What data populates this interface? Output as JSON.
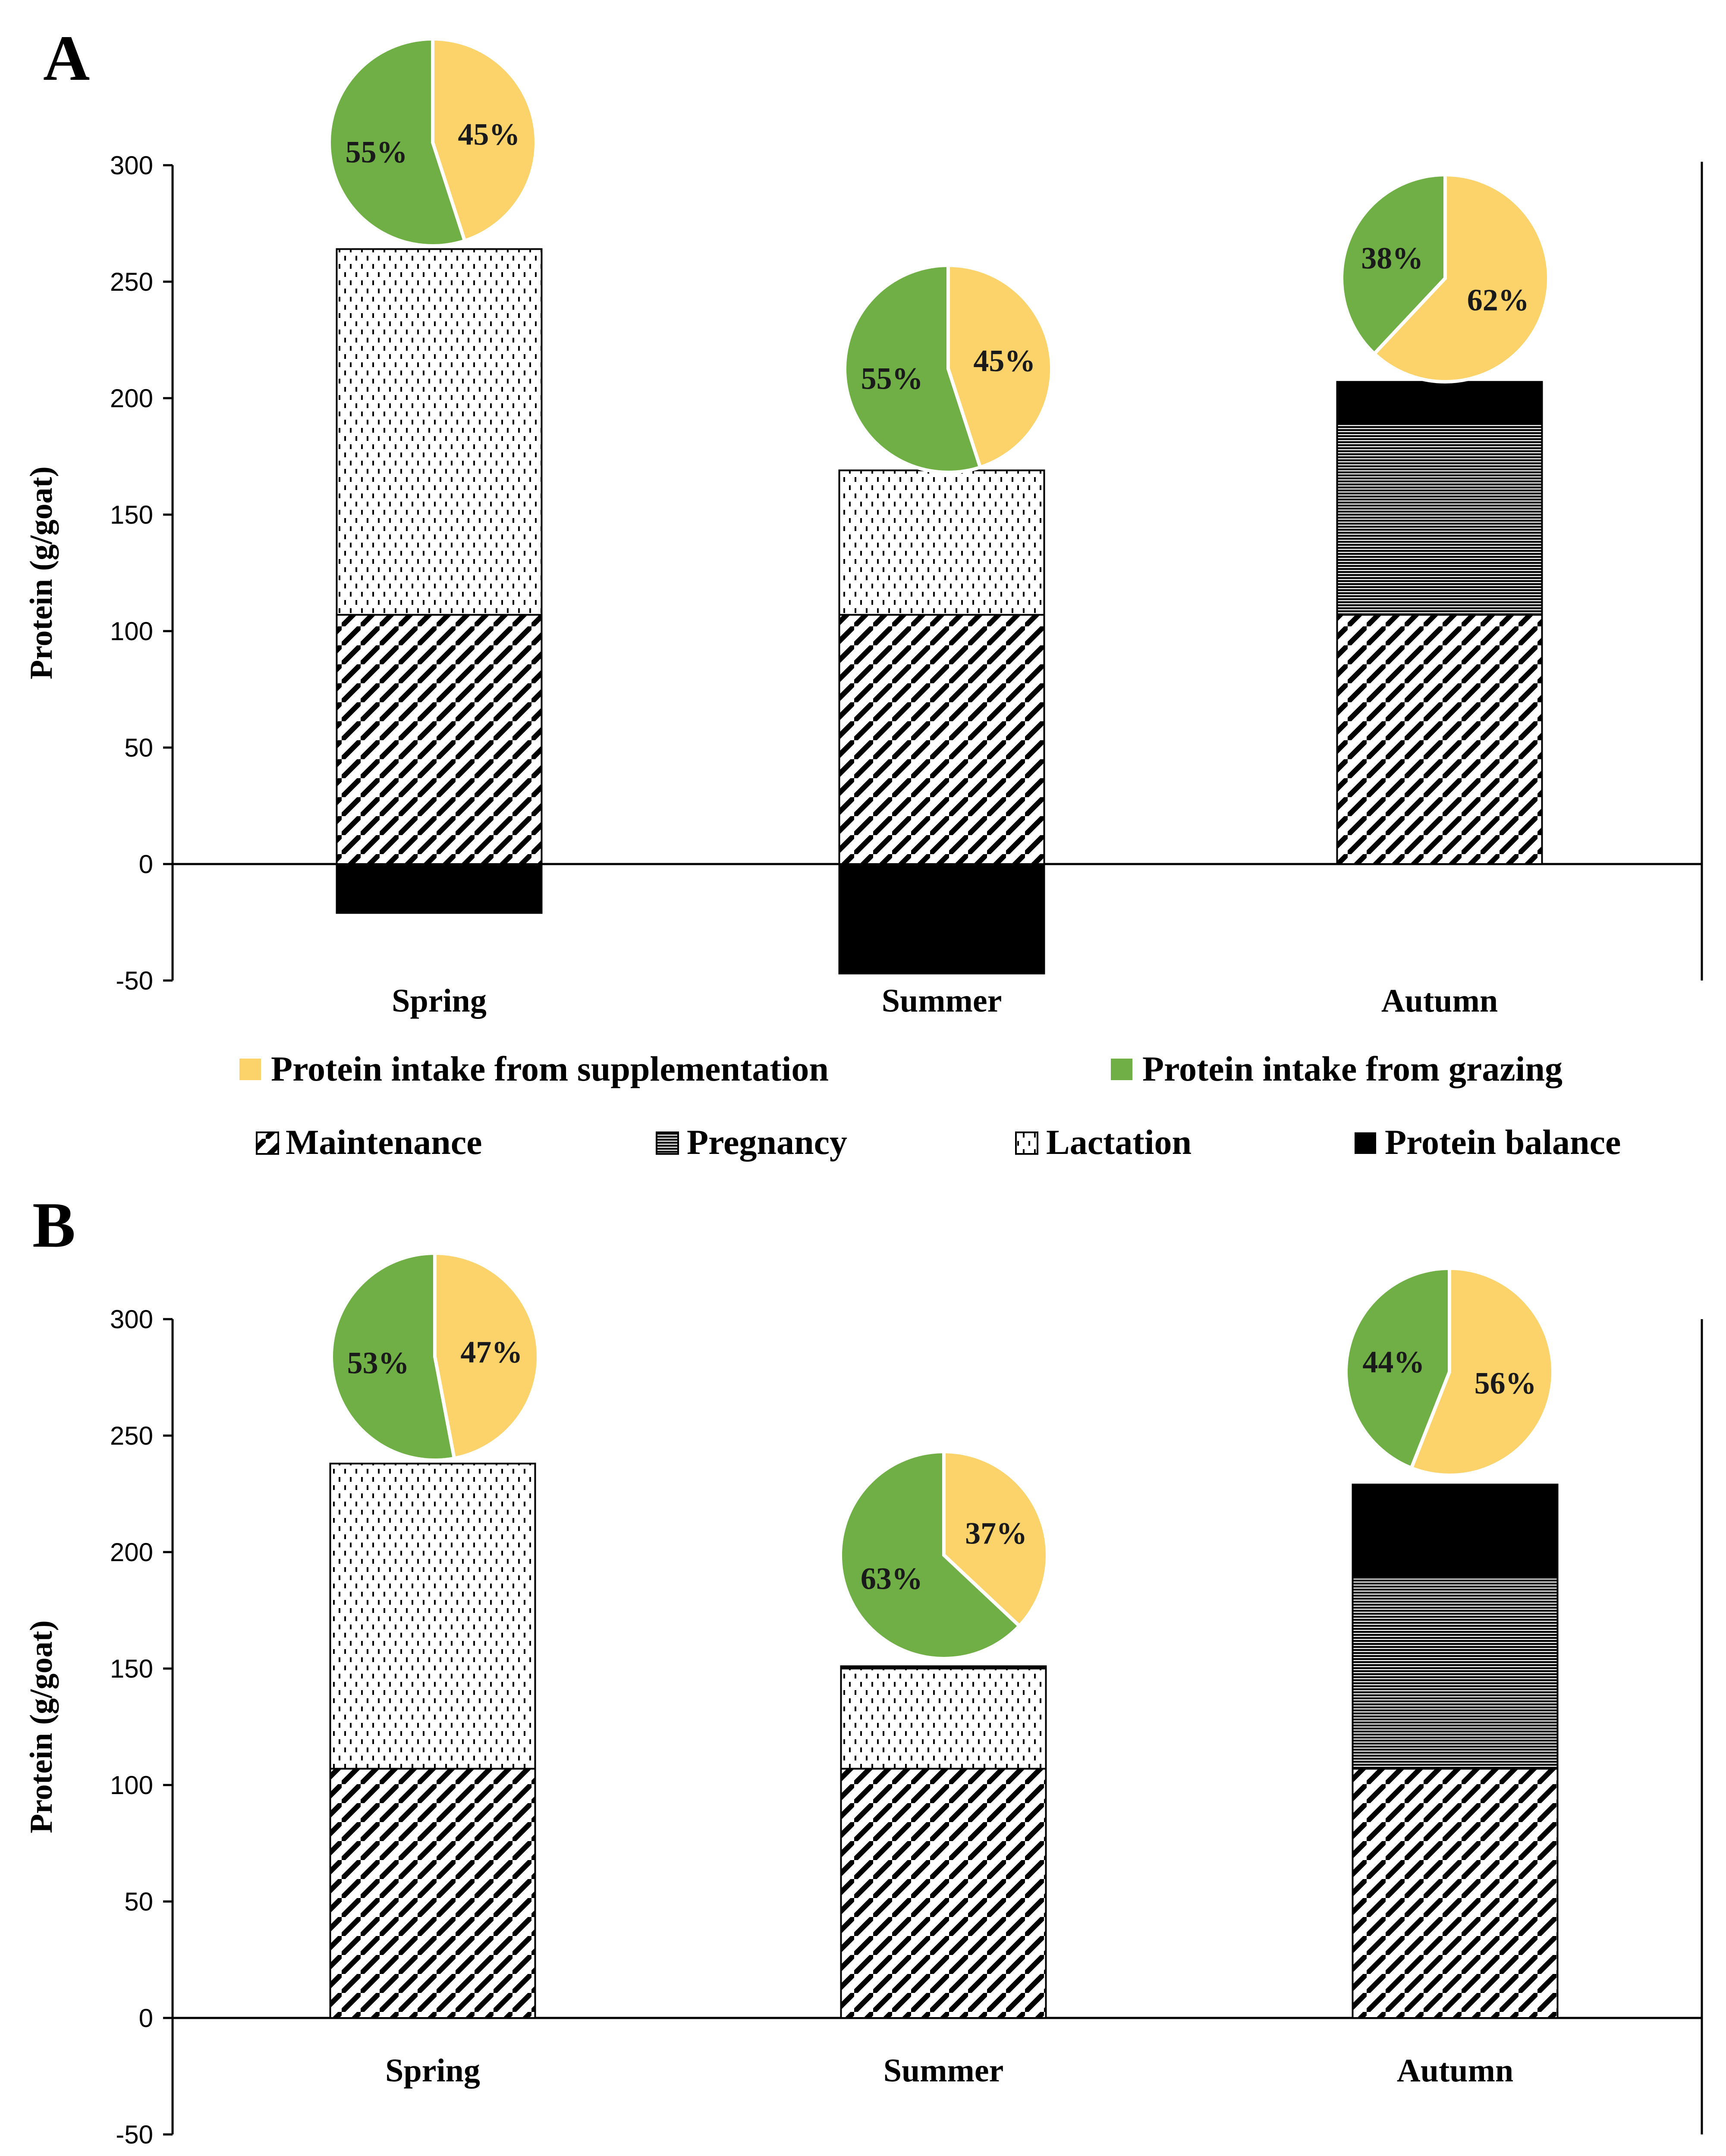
{
  "legend": {
    "pie_items": [
      {
        "label": "Protein intake from supplementation",
        "color": "#FBD36A"
      },
      {
        "label": "Protein intake from grazing",
        "color": "#6FAF45"
      }
    ],
    "bar_items": [
      {
        "label": "Maintenance",
        "pattern": "diag"
      },
      {
        "label": "Pregnancy",
        "pattern": "hlines"
      },
      {
        "label": "Lactation",
        "pattern": "dots"
      },
      {
        "label": "Protein balance",
        "pattern": "solid"
      }
    ]
  },
  "colors": {
    "supplementation": "#FBD36A",
    "grazing": "#6FAF45",
    "balance": "#000000"
  },
  "chart_data": [
    {
      "panel": "A",
      "type": "bar",
      "ylabel": "Protein (g/goat)",
      "ylim": [
        -50,
        300
      ],
      "yticks": [
        -50,
        0,
        50,
        100,
        150,
        200,
        250,
        300
      ],
      "categories": [
        "Spring",
        "Summer",
        "Autumn"
      ],
      "series": [
        {
          "name": "Maintenance",
          "values": [
            107,
            107,
            107
          ]
        },
        {
          "name": "Pregnancy",
          "values": [
            0,
            0,
            82
          ]
        },
        {
          "name": "Lactation",
          "values": [
            157,
            62,
            0
          ]
        },
        {
          "name": "Protein balance",
          "values": [
            -21,
            -47,
            18
          ]
        }
      ],
      "pies": [
        {
          "category": "Spring",
          "supplementation": 45,
          "grazing": 55,
          "labels": [
            "45%",
            "55%"
          ]
        },
        {
          "category": "Summer",
          "supplementation": 45,
          "grazing": 55,
          "labels": [
            "45%",
            "55%"
          ]
        },
        {
          "category": "Autumn",
          "supplementation": 62,
          "grazing": 38,
          "labels": [
            "62%",
            "38%"
          ]
        }
      ]
    },
    {
      "panel": "B",
      "type": "bar",
      "ylabel": "Protein (g/goat)",
      "ylim": [
        -50,
        300
      ],
      "yticks": [
        -50,
        0,
        50,
        100,
        150,
        200,
        250,
        300
      ],
      "categories": [
        "Spring",
        "Summer",
        "Autumn"
      ],
      "series": [
        {
          "name": "Maintenance",
          "values": [
            107,
            107,
            107
          ]
        },
        {
          "name": "Pregnancy",
          "values": [
            0,
            0,
            82
          ]
        },
        {
          "name": "Lactation",
          "values": [
            131,
            43,
            0
          ]
        },
        {
          "name": "Protein balance",
          "values": [
            0,
            1,
            40
          ]
        }
      ],
      "pies": [
        {
          "category": "Spring",
          "supplementation": 47,
          "grazing": 53,
          "labels": [
            "47%",
            "53%"
          ]
        },
        {
          "category": "Summer",
          "supplementation": 37,
          "grazing": 63,
          "labels": [
            "37%",
            "63%"
          ]
        },
        {
          "category": "Autumn",
          "supplementation": 56,
          "grazing": 44,
          "labels": [
            "56%",
            "44%"
          ]
        }
      ]
    }
  ]
}
